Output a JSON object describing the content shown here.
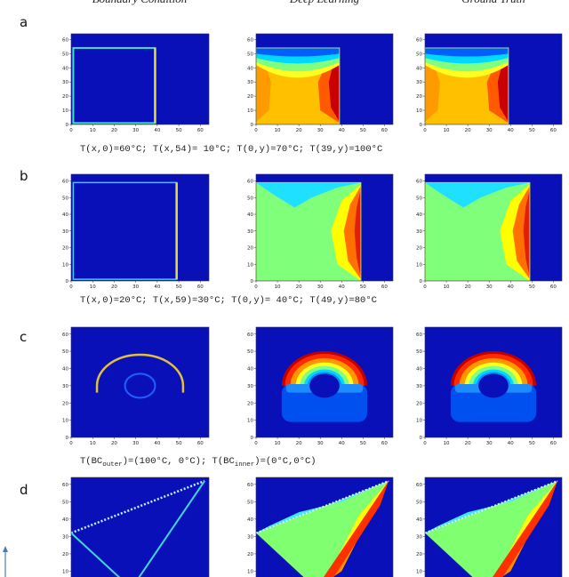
{
  "header": {
    "columns": [
      "Boundary Condition",
      "Deep Learning",
      "Ground Truth"
    ]
  },
  "axis": {
    "xlim": [
      0,
      64
    ],
    "ylim": [
      0,
      64
    ],
    "xticks": [
      0,
      10,
      20,
      30,
      40,
      50,
      60
    ],
    "yticks": [
      0,
      10,
      20,
      30,
      40,
      50,
      60
    ]
  },
  "rows": [
    {
      "label": "a",
      "caption": "T(x,0)=60°C; T(x,54)= 10°C; T(0,y)=70°C; T(39,y)=100°C"
    },
    {
      "label": "b",
      "caption": "T(x,0)=20°C; T(x,59)=30°C; T(0,y)= 40°C; T(49,y)=80°C"
    },
    {
      "label": "c",
      "caption_parts": {
        "before": "T(BC",
        "sub1": "outer",
        "mid": ")=(100°C, 0°C); T(BC",
        "sub2": "inner",
        "after": ")=(0°C,0°C)"
      }
    },
    {
      "label": "d"
    }
  ]
}
